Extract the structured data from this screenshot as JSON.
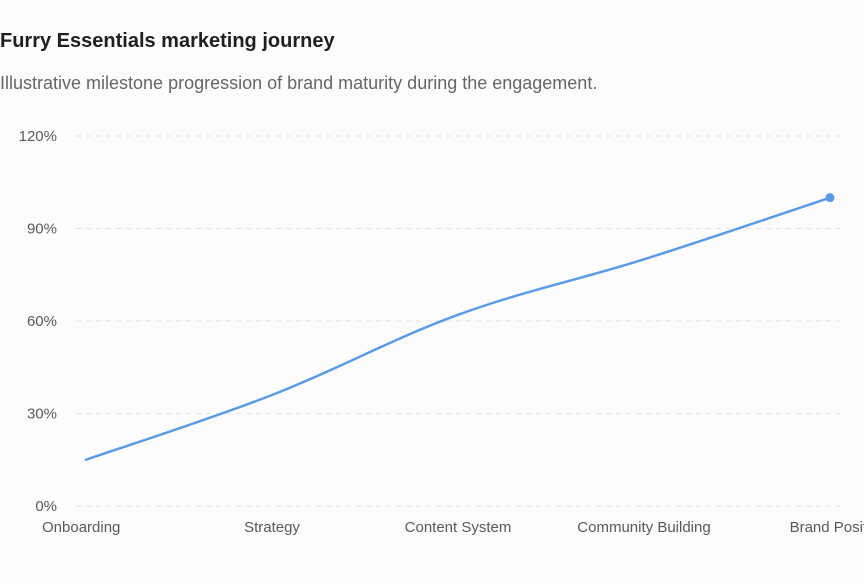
{
  "header": {
    "title": "Furry Essentials marketing journey",
    "subtitle": "Illustrative milestone progression of brand maturity during the engagement."
  },
  "colors": {
    "line": "#5b9be6",
    "grid": "#e2e2e2",
    "text": "#5a5a5a"
  },
  "chart_data": {
    "type": "line",
    "categories": [
      "Onboarding",
      "Strategy",
      "Content System",
      "Community Building",
      "Brand Positi"
    ],
    "values": [
      15,
      36,
      62,
      80,
      100
    ],
    "ylim": [
      0,
      120
    ],
    "yticks": [
      0,
      30,
      60,
      90,
      120
    ],
    "ytick_labels": [
      "0%",
      "30%",
      "60%",
      "90%",
      "120%"
    ],
    "xlabel": "",
    "ylabel": "",
    "grid": true,
    "legend": "none",
    "end_marker": true
  }
}
